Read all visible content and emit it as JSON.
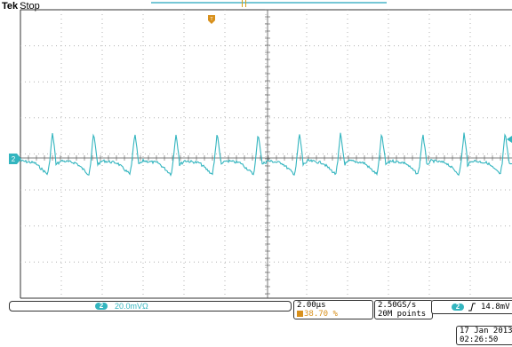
{
  "header": {
    "brand": "Tek",
    "run_state": "Stop"
  },
  "channel": {
    "number": "2",
    "scale": "20.0mV",
    "bw_symbol": "Ω",
    "color": "#33b5bf"
  },
  "timebase": {
    "scale": "2.00µs",
    "position": "38.70 %"
  },
  "acquisition": {
    "sample_rate": "2.50GS/s",
    "record_length": "20M points"
  },
  "trigger": {
    "source": "2",
    "slope_symbol": "rising-edge",
    "level": "14.8mV"
  },
  "clock": {
    "date": "17 Jan 2013",
    "time": "02:26:50"
  },
  "colors": {
    "trace": "#33b5bf",
    "trigger": "#d8901c",
    "record_bar": "#76c7d6",
    "graticule": "#b0b0b0"
  },
  "icons": [
    "trigger-position-icon",
    "channel-ground-marker-icon",
    "trigger-level-icon",
    "rising-edge-icon",
    "record-length-icon"
  ]
}
